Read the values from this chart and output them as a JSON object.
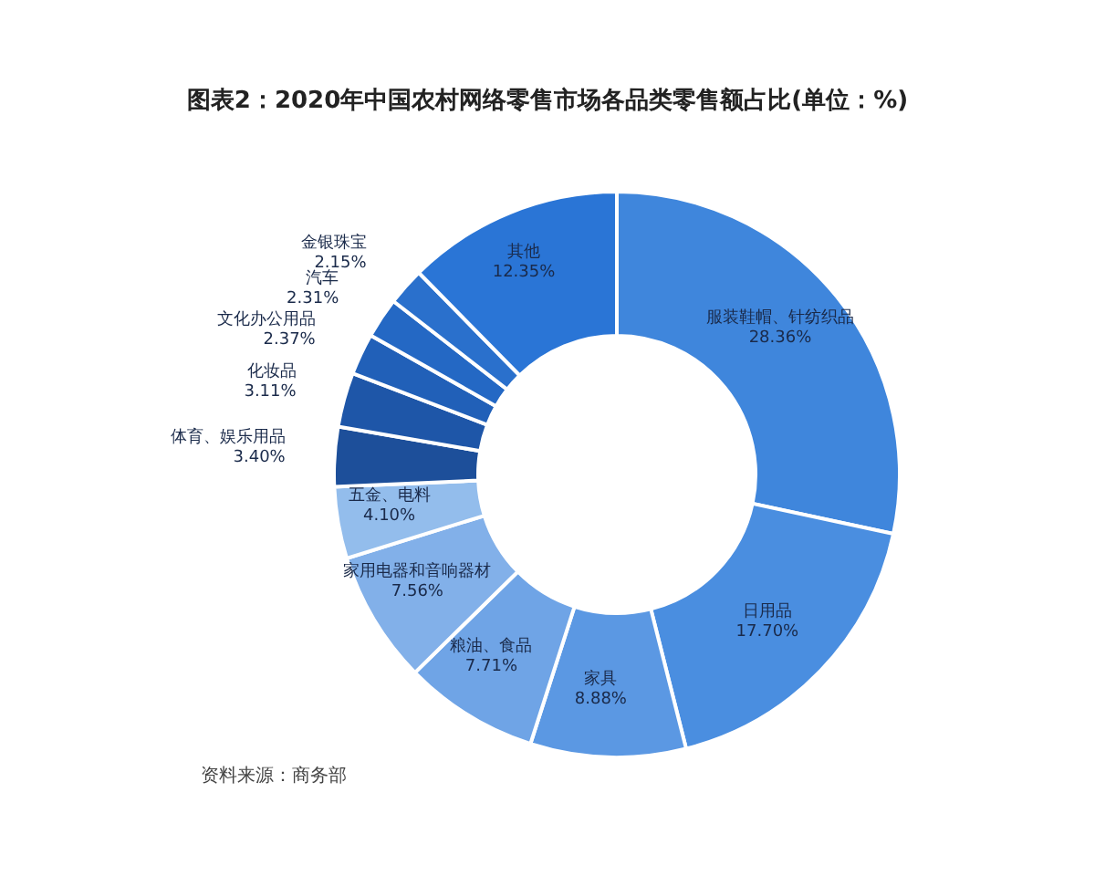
{
  "chart_data": {
    "type": "donut",
    "title": "图表2：2020年中国农村网络零售市场各品类零售额占比(单位：%)",
    "categories": [
      "服装鞋帽、针纺织品",
      "日用品",
      "家具",
      "粮油、食品",
      "家用电器和音响器材",
      "五金、电料",
      "体育、娱乐用品",
      "化妆品",
      "文化办公用品",
      "汽车",
      "金银珠宝",
      "其他"
    ],
    "values": [
      28.36,
      17.7,
      8.88,
      7.71,
      7.56,
      4.1,
      3.4,
      3.11,
      2.37,
      2.31,
      2.15,
      12.35
    ],
    "colors": [
      "#3f86dc",
      "#4a8ee0",
      "#5b98e3",
      "#6fa4e6",
      "#82b0e9",
      "#93bdec",
      "#1d4f9a",
      "#1e56a8",
      "#2160b8",
      "#2468c4",
      "#2a70cc",
      "#2a75d6"
    ],
    "value_labels": [
      "28.36%",
      "17.70%",
      "8.88%",
      "7.71%",
      "7.56%",
      "4.10%",
      "3.40%",
      "3.11%",
      "2.37%",
      "2.31%",
      "2.15%",
      "12.35%"
    ],
    "annotations": [
      "资料来源：商务部"
    ]
  }
}
